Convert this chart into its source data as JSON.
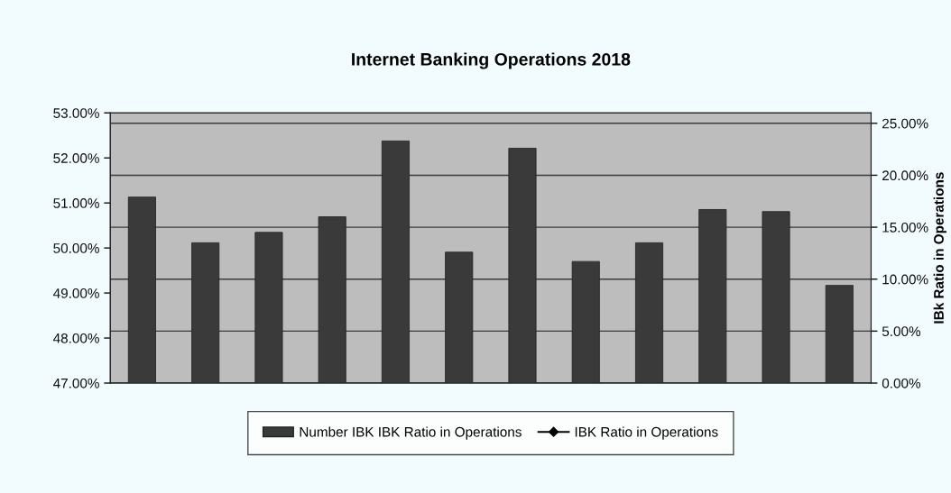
{
  "chart_data": {
    "type": "bar",
    "title": "Internet Banking Operations 2018",
    "y2label": "IBk Ratio in Operations",
    "categories": [
      null,
      null,
      null,
      null,
      null,
      null,
      null,
      null,
      null,
      null,
      null,
      null
    ],
    "series": [
      {
        "name": "Number IBK IBK Ratio in Operations",
        "color": "#3a3a3a",
        "axis": "y2",
        "values": [
          17.9,
          13.5,
          14.5,
          16.0,
          23.3,
          12.6,
          22.6,
          11.7,
          13.5,
          16.7,
          16.5,
          9.4
        ]
      },
      {
        "name": "IBK Ratio in Operations",
        "type": "line",
        "color": "#000000",
        "axis": "y",
        "marker": "diamond",
        "values": [
          null,
          null,
          null,
          null,
          null,
          null,
          null,
          null,
          null,
          null,
          null,
          null
        ]
      }
    ],
    "ylim": [
      47,
      53
    ],
    "yticks": [
      {
        "value": 47,
        "label": "47.00%"
      },
      {
        "value": 48,
        "label": "48.00%"
      },
      {
        "value": 49,
        "label": "49.00%"
      },
      {
        "value": 50,
        "label": "50.00%"
      },
      {
        "value": 51,
        "label": "51.00%"
      },
      {
        "value": 52,
        "label": "52.00%"
      },
      {
        "value": 53,
        "label": "53.00%"
      }
    ],
    "y2lim": [
      0,
      26
    ],
    "y2ticks": [
      {
        "value": 0,
        "label": "0.00%"
      },
      {
        "value": 5,
        "label": "5.00%"
      },
      {
        "value": 10,
        "label": "10.00%"
      },
      {
        "value": 15,
        "label": "15.00%"
      },
      {
        "value": 20,
        "label": "20.00%"
      },
      {
        "value": 25,
        "label": "25.00%"
      }
    ],
    "grid": "y2",
    "legend": "bottom"
  }
}
